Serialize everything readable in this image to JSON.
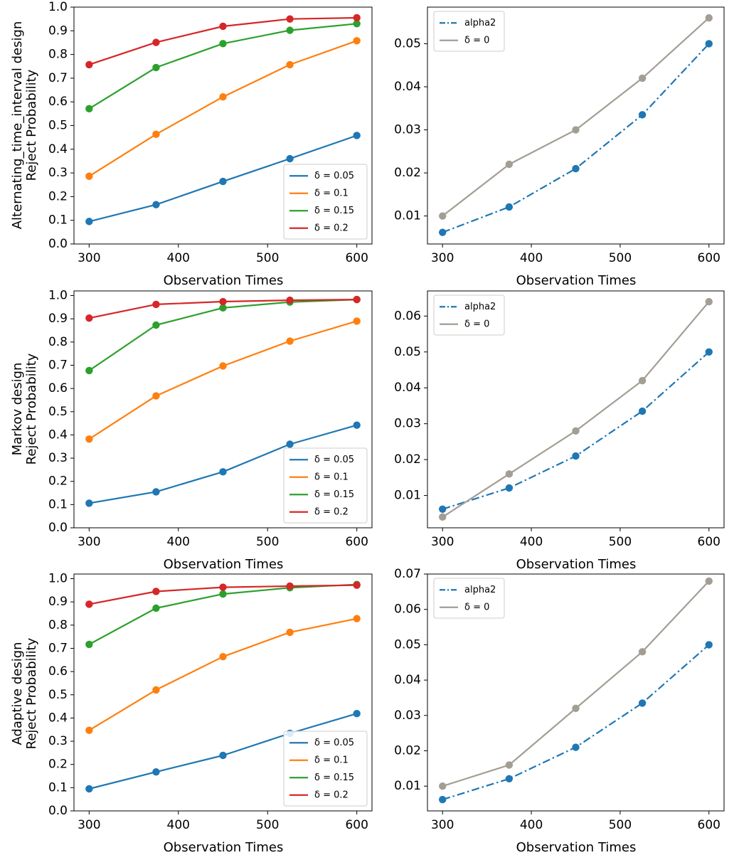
{
  "figure": {
    "panels": [
      {
        "row_title": "Alternating_time_interval design",
        "left": {
          "ylabel": "Reject Probability",
          "xlabel": "Observation Times",
          "xticks": [
            "300",
            "400",
            "500",
            "600"
          ],
          "yticks": [
            "0.0",
            "0.1",
            "0.2",
            "0.3",
            "0.4",
            "0.5",
            "0.6",
            "0.7",
            "0.8",
            "0.9",
            "1.0"
          ],
          "legend": [
            "δ = 0.05",
            "δ = 0.1",
            "δ = 0.15",
            "δ = 0.2"
          ]
        },
        "right": {
          "xlabel": "Observation Times",
          "xticks": [
            "300",
            "400",
            "500",
            "600"
          ],
          "yticks": [
            "0.01",
            "0.02",
            "0.03",
            "0.04",
            "0.05"
          ],
          "legend": [
            "alpha2",
            "δ = 0"
          ]
        }
      },
      {
        "row_title": "Markov design",
        "left": {
          "ylabel": "Reject Probability",
          "xlabel": "Observation Times",
          "xticks": [
            "300",
            "400",
            "500",
            "600"
          ],
          "yticks": [
            "0.0",
            "0.1",
            "0.2",
            "0.3",
            "0.4",
            "0.5",
            "0.6",
            "0.7",
            "0.8",
            "0.9",
            "1.0"
          ],
          "legend": [
            "δ = 0.05",
            "δ = 0.1",
            "δ = 0.15",
            "δ = 0.2"
          ]
        },
        "right": {
          "xlabel": "Observation Times",
          "xticks": [
            "300",
            "400",
            "500",
            "600"
          ],
          "yticks": [
            "0.01",
            "0.02",
            "0.03",
            "0.04",
            "0.05",
            "0.06"
          ],
          "legend": [
            "alpha2",
            "δ = 0"
          ]
        }
      },
      {
        "row_title": "Adaptive design",
        "left": {
          "ylabel": "Reject Probability",
          "xlabel": "Observation Times",
          "xticks": [
            "300",
            "400",
            "500",
            "600"
          ],
          "yticks": [
            "0.0",
            "0.1",
            "0.2",
            "0.3",
            "0.4",
            "0.5",
            "0.6",
            "0.7",
            "0.8",
            "0.9",
            "1.0"
          ],
          "legend": [
            "δ = 0.05",
            "δ = 0.1",
            "δ = 0.15",
            "δ = 0.2"
          ]
        },
        "right": {
          "xlabel": "Observation Times",
          "xticks": [
            "300",
            "400",
            "500",
            "600"
          ],
          "yticks": [
            "0.01",
            "0.02",
            "0.03",
            "0.04",
            "0.05",
            "0.06",
            "0.07"
          ],
          "legend": [
            "alpha2",
            "δ = 0"
          ]
        }
      }
    ]
  },
  "chart_data": [
    {
      "type": "line",
      "title": "",
      "xlabel": "Observation Times",
      "ylabel": "Alternating_time_interval design\nReject Probability",
      "x": [
        300,
        375,
        450,
        525,
        600
      ],
      "xlim": [
        283,
        617
      ],
      "ylim": [
        0.0,
        1.0
      ],
      "xticks": [
        300,
        400,
        500,
        600
      ],
      "yticks": [
        0.0,
        0.1,
        0.2,
        0.3,
        0.4,
        0.5,
        0.6,
        0.7,
        0.8,
        0.9,
        1.0
      ],
      "legend_position": "lower-right",
      "series": [
        {
          "name": "δ = 0.05",
          "color": "#1f77b4",
          "style": "solid",
          "values": [
            0.095,
            0.166,
            0.264,
            0.36,
            0.458
          ]
        },
        {
          "name": "δ = 0.1",
          "color": "#ff7f0e",
          "style": "solid",
          "values": [
            0.286,
            0.463,
            0.621,
            0.757,
            0.858
          ]
        },
        {
          "name": "δ = 0.15",
          "color": "#2ca02c",
          "style": "solid",
          "values": [
            0.571,
            0.745,
            0.846,
            0.902,
            0.93
          ]
        },
        {
          "name": "δ = 0.2",
          "color": "#d62728",
          "style": "solid",
          "values": [
            0.757,
            0.851,
            0.919,
            0.95,
            0.955
          ]
        }
      ]
    },
    {
      "type": "line",
      "title": "",
      "xlabel": "Observation Times",
      "ylabel": "",
      "x": [
        300,
        375,
        450,
        525,
        600
      ],
      "xlim": [
        283,
        617
      ],
      "ylim": [
        0.0035,
        0.0585
      ],
      "xticks": [
        300,
        400,
        500,
        600
      ],
      "yticks": [
        0.01,
        0.02,
        0.03,
        0.04,
        0.05
      ],
      "legend_position": "top-left",
      "series": [
        {
          "name": "alpha2",
          "color": "#1f77b4",
          "style": "dashdot",
          "values": [
            0.0062,
            0.0121,
            0.021,
            0.0335,
            0.05
          ]
        },
        {
          "name": "δ = 0",
          "color": "#a39e93",
          "style": "solid",
          "values": [
            0.01,
            0.022,
            0.03,
            0.042,
            0.056
          ]
        }
      ]
    },
    {
      "type": "line",
      "title": "",
      "xlabel": "Observation Times",
      "ylabel": "Markov design\nReject Probability",
      "x": [
        300,
        375,
        450,
        525,
        600
      ],
      "xlim": [
        283,
        617
      ],
      "ylim": [
        0.0,
        1.02
      ],
      "xticks": [
        300,
        400,
        500,
        600
      ],
      "yticks": [
        0.0,
        0.1,
        0.2,
        0.3,
        0.4,
        0.5,
        0.6,
        0.7,
        0.8,
        0.9,
        1.0
      ],
      "legend_position": "lower-right",
      "series": [
        {
          "name": "δ = 0.05",
          "color": "#1f77b4",
          "style": "solid",
          "values": [
            0.106,
            0.155,
            0.241,
            0.36,
            0.442
          ]
        },
        {
          "name": "δ = 0.1",
          "color": "#ff7f0e",
          "style": "solid",
          "values": [
            0.382,
            0.568,
            0.697,
            0.804,
            0.89
          ]
        },
        {
          "name": "δ = 0.15",
          "color": "#2ca02c",
          "style": "solid",
          "values": [
            0.677,
            0.873,
            0.947,
            0.972,
            0.983
          ]
        },
        {
          "name": "δ = 0.2",
          "color": "#d62728",
          "style": "solid",
          "values": [
            0.903,
            0.962,
            0.974,
            0.98,
            0.983
          ]
        }
      ]
    },
    {
      "type": "line",
      "title": "",
      "xlabel": "Observation Times",
      "ylabel": "",
      "x": [
        300,
        375,
        450,
        525,
        600
      ],
      "xlim": [
        283,
        617
      ],
      "ylim": [
        0.001,
        0.067
      ],
      "xticks": [
        300,
        400,
        500,
        600
      ],
      "yticks": [
        0.01,
        0.02,
        0.03,
        0.04,
        0.05,
        0.06
      ],
      "legend_position": "top-left",
      "series": [
        {
          "name": "alpha2",
          "color": "#1f77b4",
          "style": "dashdot",
          "values": [
            0.0062,
            0.0121,
            0.021,
            0.0335,
            0.05
          ]
        },
        {
          "name": "δ = 0",
          "color": "#a39e93",
          "style": "solid",
          "values": [
            0.004,
            0.016,
            0.028,
            0.042,
            0.064
          ]
        }
      ]
    },
    {
      "type": "line",
      "title": "",
      "xlabel": "Observation Times",
      "ylabel": "Adaptive design\nReject Probability",
      "x": [
        300,
        375,
        450,
        525,
        600
      ],
      "xlim": [
        283,
        617
      ],
      "ylim": [
        0.0,
        1.02
      ],
      "xticks": [
        300,
        400,
        500,
        600
      ],
      "yticks": [
        0.0,
        0.1,
        0.2,
        0.3,
        0.4,
        0.5,
        0.6,
        0.7,
        0.8,
        0.9,
        1.0
      ],
      "legend_position": "lower-right",
      "series": [
        {
          "name": "δ = 0.05",
          "color": "#1f77b4",
          "style": "solid",
          "values": [
            0.095,
            0.168,
            0.239,
            0.334,
            0.419
          ]
        },
        {
          "name": "δ = 0.1",
          "color": "#ff7f0e",
          "style": "solid",
          "values": [
            0.347,
            0.521,
            0.664,
            0.769,
            0.828
          ]
        },
        {
          "name": "δ = 0.15",
          "color": "#2ca02c",
          "style": "solid",
          "values": [
            0.717,
            0.873,
            0.934,
            0.961,
            0.975
          ]
        },
        {
          "name": "δ = 0.2",
          "color": "#d62728",
          "style": "solid",
          "values": [
            0.89,
            0.945,
            0.963,
            0.968,
            0.972
          ]
        }
      ]
    },
    {
      "type": "line",
      "title": "",
      "xlabel": "Observation Times",
      "ylabel": "",
      "x": [
        300,
        375,
        450,
        525,
        600
      ],
      "xlim": [
        283,
        617
      ],
      "ylim": [
        0.003,
        0.07
      ],
      "xticks": [
        300,
        400,
        500,
        600
      ],
      "yticks": [
        0.01,
        0.02,
        0.03,
        0.04,
        0.05,
        0.06,
        0.07
      ],
      "legend_position": "top-left",
      "series": [
        {
          "name": "alpha2",
          "color": "#1f77b4",
          "style": "dashdot",
          "values": [
            0.0062,
            0.0121,
            0.021,
            0.0335,
            0.05
          ]
        },
        {
          "name": "δ = 0",
          "color": "#a39e93",
          "style": "solid",
          "values": [
            0.01,
            0.016,
            0.032,
            0.048,
            0.068
          ]
        }
      ]
    }
  ]
}
